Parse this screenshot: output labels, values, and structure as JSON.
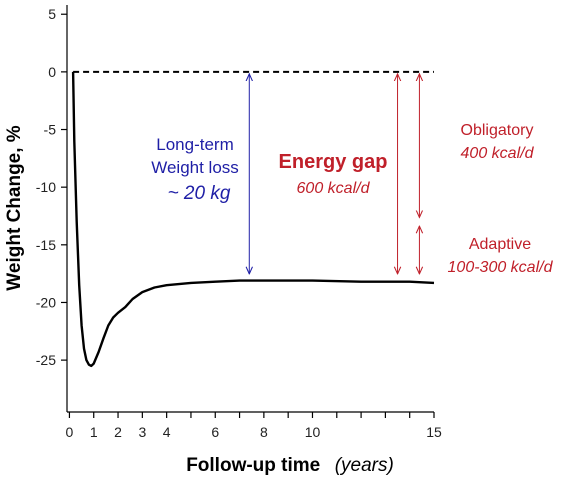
{
  "chart_data": {
    "type": "line",
    "ylabel": "Weight Change, %",
    "xlabel": "Follow-up time",
    "xlabel_unit": "(years)",
    "xlim": [
      -0.1,
      15
    ],
    "ylim": [
      -29.5,
      5.8
    ],
    "x_ticks": [
      0,
      1,
      2,
      3,
      4,
      6,
      8,
      10,
      15
    ],
    "x_tick_labels": [
      "0",
      "1",
      "2",
      "3",
      "4",
      "6",
      "8",
      "10",
      "15"
    ],
    "y_ticks": [
      5,
      0,
      -5,
      -10,
      -15,
      -20,
      -25
    ],
    "y_tick_labels": [
      "5",
      "0",
      "-5",
      "-10",
      "-15",
      "-20",
      "-25"
    ],
    "grid": false,
    "series": [
      {
        "style": "solid",
        "color": "#000000",
        "x": [
          0.15,
          0.2,
          0.3,
          0.4,
          0.5,
          0.6,
          0.7,
          0.8,
          0.9,
          1.0,
          1.2,
          1.4,
          1.6,
          1.8,
          2.0,
          2.3,
          2.6,
          3.0,
          3.5,
          4.0,
          5.0,
          6.0,
          7.0,
          8.0,
          10.0,
          12.0,
          14.0,
          15.0
        ],
        "y": [
          0,
          -6,
          -13,
          -18.5,
          -22,
          -24,
          -25,
          -25.4,
          -25.5,
          -25.3,
          -24.3,
          -23.1,
          -22,
          -21.3,
          -20.9,
          -20.4,
          -19.7,
          -19.1,
          -18.7,
          -18.5,
          -18.3,
          -18.2,
          -18.1,
          -18.1,
          -18.1,
          -18.2,
          -18.2,
          -18.3
        ]
      },
      {
        "style": "dashed",
        "color": "#000000",
        "x": [
          0.15,
          15
        ],
        "y": [
          0,
          0
        ]
      }
    ],
    "annotations": {
      "weight_loss": {
        "lines": [
          "Long-term",
          "Weight loss"
        ],
        "value": "~ 20 kg",
        "x": 7.4,
        "y_top": 0,
        "y_bottom": -17.7,
        "color": "#1f1fa6"
      },
      "energy_gap": {
        "title": "Energy gap",
        "value": "600 kcal/d",
        "x": 13.5,
        "y_top": 0,
        "y_bottom": -17.7,
        "color": "#c0202a"
      },
      "obligatory": {
        "title": "Obligatory",
        "value": "400 kcal/d",
        "x": 14.4,
        "y_top": 0,
        "y_bottom": -12.8,
        "color": "#c0202a"
      },
      "adaptive": {
        "title": "Adaptive",
        "value": "100-300 kcal/d",
        "x": 14.4,
        "y_top": -13.2,
        "y_bottom": -17.7,
        "color": "#c0202a"
      }
    }
  }
}
